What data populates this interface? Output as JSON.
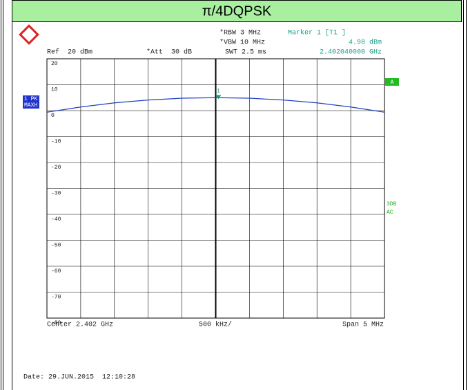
{
  "chart_data": {
    "type": "line",
    "title": "π/4DQPSK",
    "settings": {
      "ref": "Ref  20 dBm",
      "att": "*Att  30 dB",
      "rbw": "*RBW 3 MHz",
      "vbw": "*VBW 10 MHz",
      "swt": "SWT 2.5 ms",
      "center": "Center 2.402 GHz",
      "div": "500 kHz/",
      "span": "Span 5 MHz",
      "channel": "A",
      "flags": [
        "3DB",
        "AC"
      ],
      "date": "Date: 29.JUN.2015  12:10:28"
    },
    "marker": {
      "name": "Marker 1 [T1 ]",
      "label": "1",
      "x": 2.40204,
      "y": 4.98,
      "value_label": "4.98 dBm",
      "x_label": "2.402040000 GHz"
    },
    "series": [
      {
        "name": "1 PK",
        "detector": "MAXH",
        "color": "#1f3fbf",
        "x": [
          2.3995,
          2.4,
          2.4005,
          2.401,
          2.4015,
          2.402,
          2.4025,
          2.403,
          2.4035,
          2.404,
          2.4045
        ],
        "values": [
          -0.6,
          1.4,
          3.0,
          4.1,
          4.8,
          5.0,
          4.8,
          4.1,
          3.0,
          1.4,
          -0.6
        ]
      }
    ],
    "xlim": [
      2.3995,
      2.4045
    ],
    "ylim": [
      -80,
      20
    ],
    "yticks": [
      20,
      10,
      0,
      -10,
      -20,
      -30,
      -40,
      -50,
      -60,
      -70,
      -80
    ],
    "grid": true
  }
}
